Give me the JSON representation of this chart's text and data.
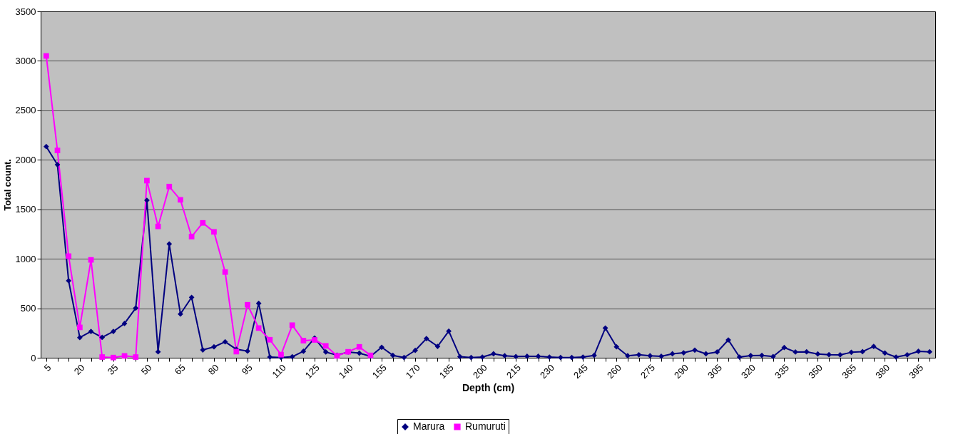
{
  "chart_data": {
    "type": "line",
    "xlabel": "Depth (cm)",
    "ylabel": "Total count.",
    "categories": [
      "5",
      null,
      null,
      "20",
      null,
      null,
      "35",
      null,
      null,
      "50",
      null,
      null,
      "65",
      null,
      null,
      "80",
      null,
      null,
      "95",
      null,
      null,
      "110",
      null,
      null,
      "125",
      null,
      null,
      "140",
      null,
      null,
      "155",
      null,
      null,
      "170",
      null,
      null,
      "185",
      null,
      null,
      "200",
      null,
      null,
      "215",
      null,
      null,
      "230",
      null,
      null,
      "245",
      null,
      null,
      "260",
      null,
      null,
      "275",
      null,
      null,
      "290",
      null,
      null,
      "305",
      null,
      null,
      "320",
      null,
      null,
      "335",
      null,
      null,
      "350",
      null,
      null,
      "365",
      null,
      null,
      "380",
      null,
      null,
      "395",
      null
    ],
    "series": [
      {
        "name": "Marura",
        "color": "#000080",
        "marker": "diamond",
        "values": [
          2134,
          1951,
          778,
          204,
          266,
          206,
          266,
          346,
          502,
          1591,
          60,
          1150,
          442,
          610,
          79,
          110,
          161,
          86,
          67,
          550,
          7,
          2,
          10,
          65,
          199,
          58,
          26,
          58,
          46,
          14,
          106,
          24,
          2,
          74,
          194,
          115,
          269,
          10,
          2,
          7,
          40,
          20,
          12,
          15,
          15,
          7,
          2,
          2,
          7,
          24,
          300,
          110,
          20,
          30,
          20,
          15,
          40,
          50,
          77,
          40,
          58,
          180,
          7,
          22,
          24,
          12,
          103,
          58,
          60,
          38,
          31,
          29,
          55,
          62,
          115,
          48,
          7,
          29,
          65,
          60
        ]
      },
      {
        "name": "Rumuruti",
        "color": "#ff00ff",
        "marker": "square",
        "values": [
          3050,
          2095,
          1027,
          307,
          989,
          7,
          2,
          19,
          7,
          1790,
          1327,
          1730,
          1596,
          1224,
          1363,
          1272,
          866,
          62,
          535,
          300,
          182,
          31,
          329,
          173,
          180,
          120,
          19,
          60,
          110,
          24,
          null,
          null,
          null,
          null,
          null,
          null,
          null,
          null,
          null,
          null,
          null,
          null,
          null,
          null,
          null,
          null,
          null,
          null,
          null,
          null,
          null,
          null,
          null,
          null,
          null,
          null,
          null,
          null,
          null,
          null,
          null,
          null,
          null,
          null,
          null,
          null,
          null,
          null,
          null,
          null,
          null,
          null,
          null,
          null,
          null,
          null,
          null,
          null,
          null,
          null
        ]
      }
    ],
    "ylim": [
      0,
      3500
    ],
    "yticks": [
      0,
      500,
      1000,
      1500,
      2000,
      2500,
      3000,
      3500
    ],
    "grid": "y",
    "legend": "bottom"
  }
}
